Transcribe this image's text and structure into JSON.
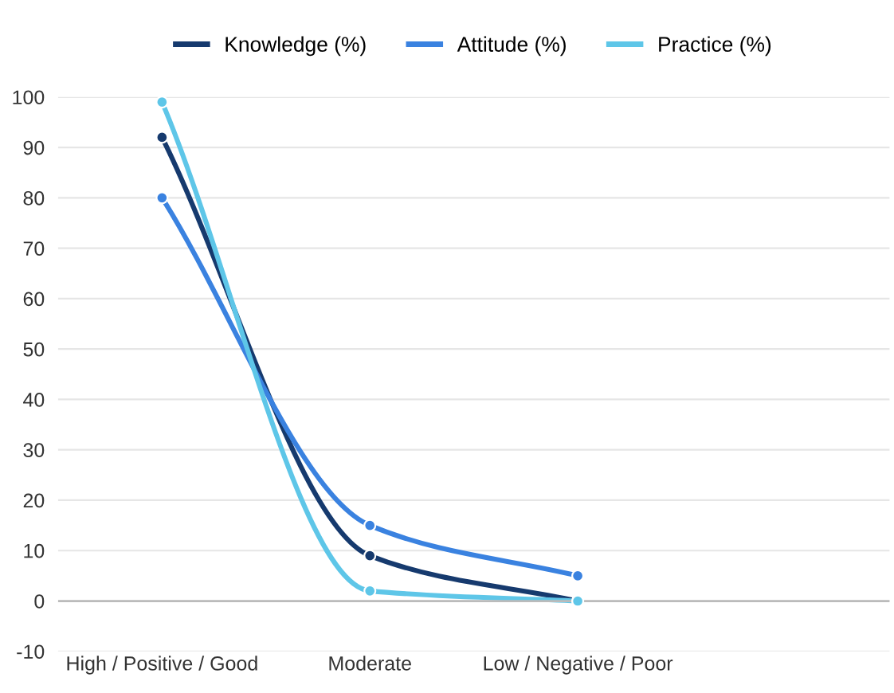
{
  "chart_data": {
    "type": "line",
    "categories": [
      "High / Positive / Good",
      "Moderate",
      "Low / Negative / Poor"
    ],
    "series": [
      {
        "name": "Knowledge (%)",
        "color": "#163a6e",
        "values": [
          92,
          9,
          0
        ]
      },
      {
        "name": "Attitude (%)",
        "color": "#3a82e0",
        "values": [
          80,
          15,
          5
        ]
      },
      {
        "name": "Practice (%)",
        "color": "#5ec6e8",
        "values": [
          99,
          2,
          0
        ]
      }
    ],
    "ylim": [
      -10,
      100
    ],
    "yticks": [
      -10,
      0,
      10,
      20,
      30,
      40,
      50,
      60,
      70,
      80,
      90,
      100
    ],
    "grid": "y",
    "legend": "top",
    "marker": "circle",
    "line_style": "solid"
  }
}
